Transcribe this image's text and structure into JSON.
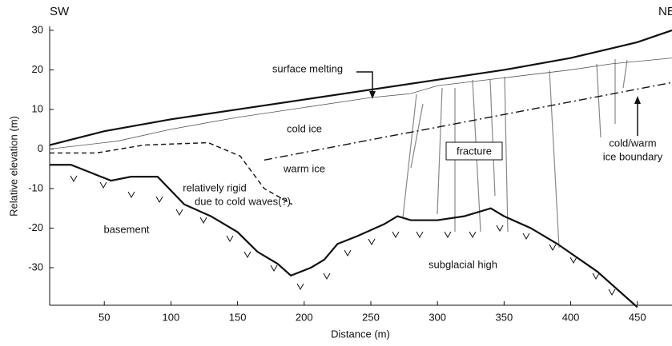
{
  "chart_data": {
    "type": "line",
    "corner_labels": [
      "SW",
      "NE"
    ],
    "ylabel": "Relative elevation (m)",
    "xlabel": "Distance (m)",
    "xlim": [
      9,
      476
    ],
    "ylim": [
      -39.5,
      31
    ],
    "xticks": [
      50,
      100,
      150,
      200,
      250,
      300,
      350,
      400,
      450
    ],
    "yticks": [
      -30,
      -20,
      -10,
      0,
      10,
      20,
      30
    ],
    "series": [
      {
        "x": [
          9,
          50,
          100,
          150,
          200,
          250,
          300,
          350,
          400,
          450,
          476
        ],
        "values": [
          1,
          4.5,
          7.5,
          10,
          12.5,
          15,
          17.5,
          20,
          23,
          27,
          30
        ],
        "color": "#111",
        "dash": "none",
        "width": 2.2
      },
      {
        "x": [
          9,
          60,
          100,
          150,
          200,
          250,
          280,
          300,
          350,
          400,
          430,
          476
        ],
        "values": [
          0,
          2,
          5,
          8,
          10.5,
          13,
          14,
          16,
          18,
          20,
          21.5,
          23
        ],
        "color": "#555",
        "dash": "none",
        "width": 0.8
      },
      {
        "x": [
          9,
          25,
          40,
          55,
          70,
          90,
          110,
          130,
          150,
          165,
          180,
          190,
          205,
          215,
          225,
          240,
          260,
          270,
          280,
          300,
          320,
          340,
          350,
          370,
          390,
          420,
          450
        ],
        "values": [
          -4,
          -4,
          -6,
          -8,
          -7,
          -7,
          -14,
          -17,
          -21,
          -26,
          -29,
          -32,
          -30,
          -28,
          -24,
          -22,
          -19,
          -17,
          -18,
          -18,
          -17,
          -15,
          -17,
          -20,
          -24,
          -31,
          -40
        ],
        "color": "#111",
        "dash": "none",
        "width": 2.2
      },
      {
        "x": [
          9,
          44,
          80,
          128,
          152,
          170,
          191
        ],
        "values": [
          -1,
          -1,
          1,
          1.6,
          -1.8,
          -10,
          -14
        ],
        "color": "#111",
        "dash": "6 4",
        "width": 1.4
      },
      {
        "x": [
          170,
          476
        ],
        "values": [
          -2.8,
          16.8
        ],
        "color": "#111",
        "dash": "10 4 2 4",
        "width": 1.4
      }
    ],
    "annotations": {
      "surface_melting": "surface melting",
      "cold_ice": "cold ice",
      "warm_ice": "warm ice",
      "fracture": "fracture",
      "boundary": [
        "cold/warm",
        "ice boundary"
      ],
      "rigid": [
        "relatively rigid",
        "due to cold waves(?)"
      ],
      "basement": "basement",
      "subglacial_high": "subglacial high"
    }
  }
}
